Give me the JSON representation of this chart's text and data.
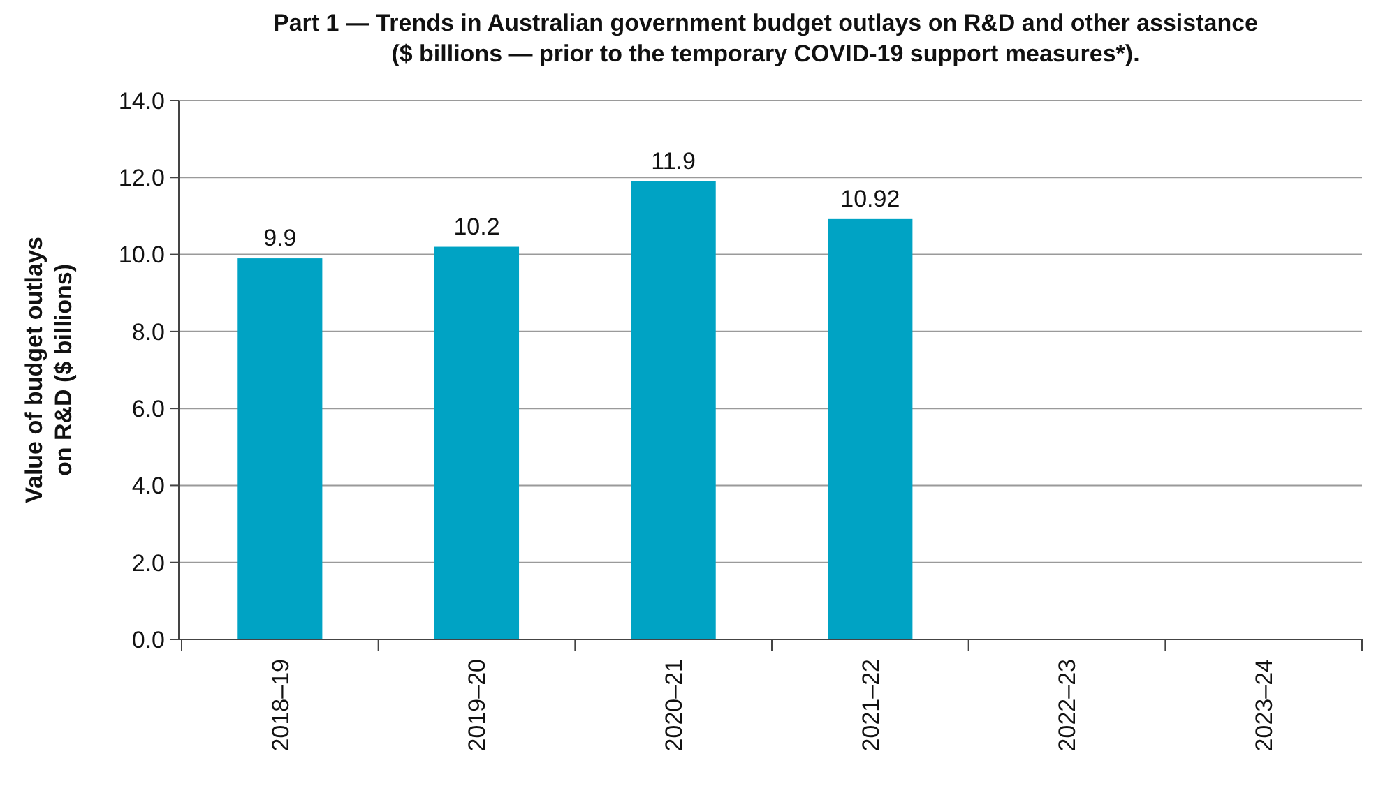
{
  "chart_data": {
    "type": "bar",
    "title": "Part 1 — Trends in Australian government budget outlays on R&D and other assistance\n($ billions — prior to the temporary COVID-19 support measures*).",
    "ylabel": "Value of budget outlays\non R&D ($ billions)",
    "categories": [
      "2018–19",
      "2019–20",
      "2020–21",
      "2021–22",
      "2022–23",
      "2023–24"
    ],
    "values": [
      9.9,
      10.2,
      11.9,
      10.92,
      null,
      null
    ],
    "color": "#00a3c4",
    "data_labels": true,
    "ylim": [
      0,
      14
    ],
    "yticks": [
      {
        "value": 0,
        "label": "0.0"
      },
      {
        "value": 2,
        "label": "2.0"
      },
      {
        "value": 4,
        "label": "4.0"
      },
      {
        "value": 6,
        "label": "6.0"
      },
      {
        "value": 8,
        "label": "8.0"
      },
      {
        "value": 10,
        "label": "10.0"
      },
      {
        "value": 12,
        "label": "12.0"
      },
      {
        "value": 14,
        "label": "14.0"
      }
    ],
    "grid": "y"
  }
}
